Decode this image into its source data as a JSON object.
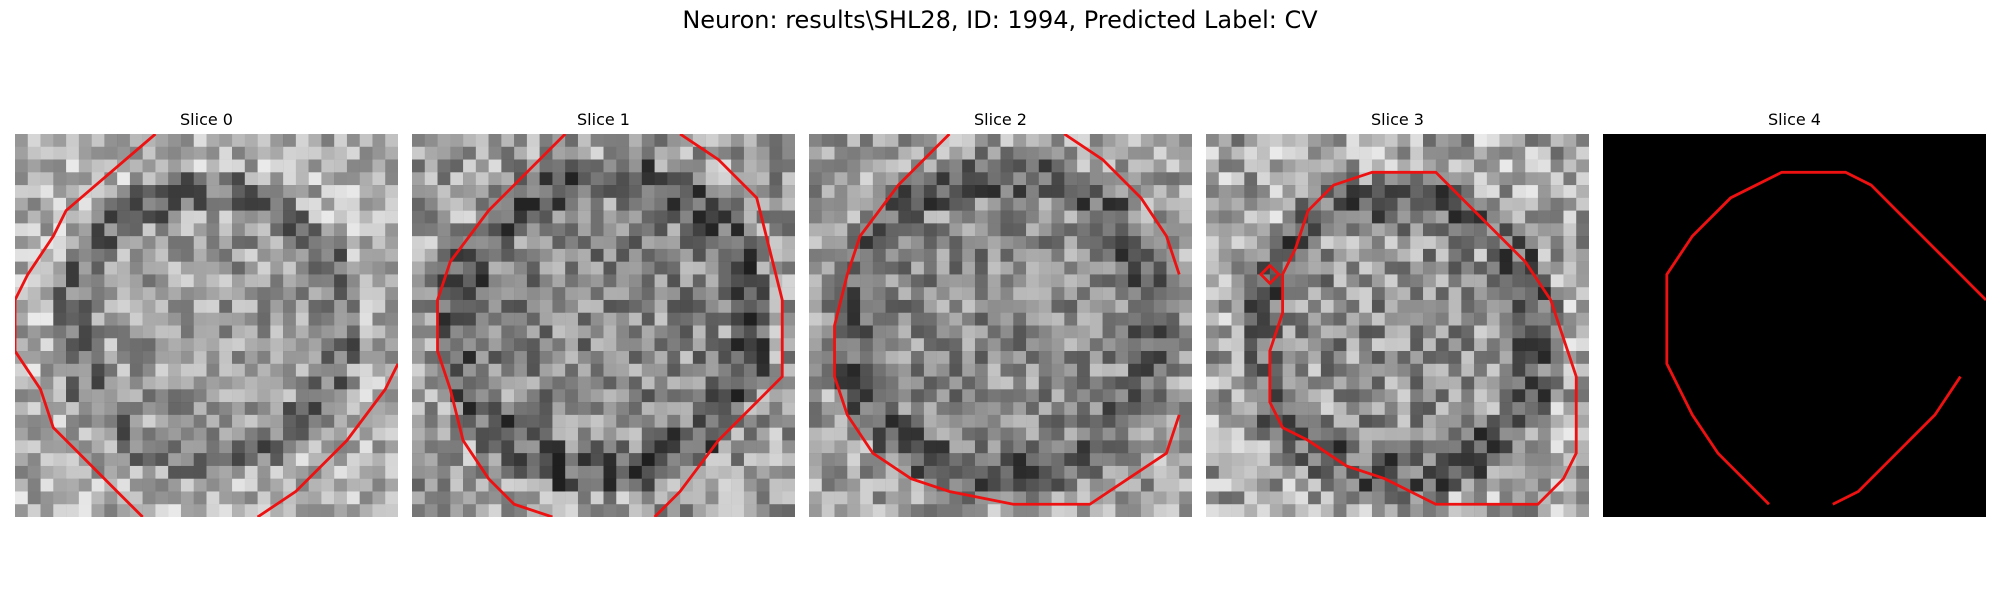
{
  "figure": {
    "suptitle": "Neuron: results\\SHL28, ID: 1994, Predicted Label: CV",
    "contour_color": "#ee1111"
  },
  "panels": [
    {
      "title": "Slice 0",
      "kind": "grayscale",
      "seed": 17,
      "ring_center": [
        15,
        15
      ],
      "ring_radius": 10.5,
      "mean": 0.62,
      "spread": 0.22
    },
    {
      "title": "Slice 1",
      "kind": "grayscale",
      "seed": 23,
      "ring_center": [
        15,
        15
      ],
      "ring_radius": 11.5,
      "mean": 0.54,
      "spread": 0.24
    },
    {
      "title": "Slice 2",
      "kind": "grayscale",
      "seed": 31,
      "ring_center": [
        15,
        15
      ],
      "ring_radius": 12.0,
      "mean": 0.55,
      "spread": 0.22
    },
    {
      "title": "Slice 3",
      "kind": "grayscale",
      "seed": 47,
      "ring_center": [
        15,
        16
      ],
      "ring_radius": 11.0,
      "mean": 0.58,
      "spread": 0.26
    },
    {
      "title": "Slice 4",
      "kind": "mask",
      "seed": 5,
      "ring_center": [
        15,
        15
      ],
      "ring_radius": 10.0,
      "mean": 0.0,
      "spread": 0.0
    }
  ]
}
